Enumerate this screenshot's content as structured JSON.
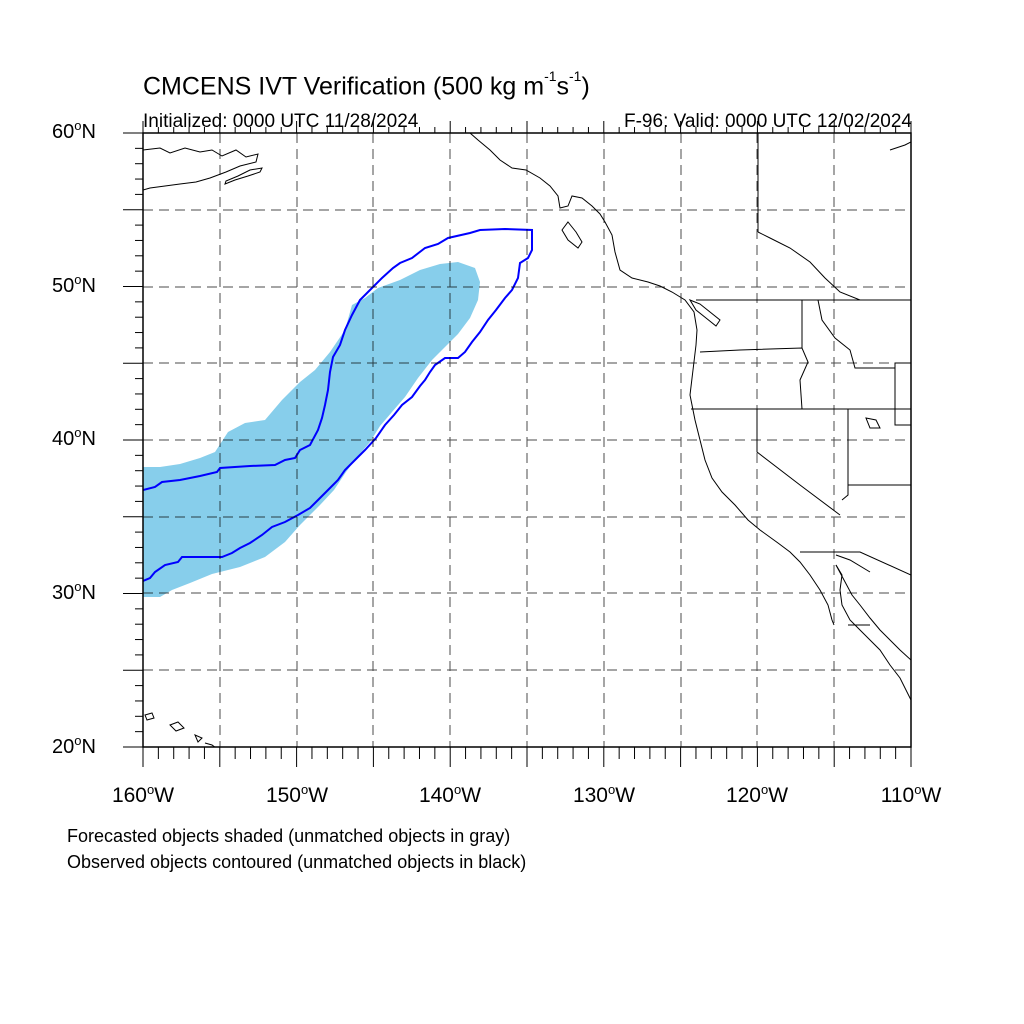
{
  "title": {
    "prefix": "CMCENS IVT Verification (500 kg m",
    "sup1": "-1",
    "mid": "s",
    "sup2": "-1",
    "suffix": ")"
  },
  "initialized": "Initialized: 0000 UTC 11/28/2024",
  "valid": "F-96: Valid: 0000 UTC 12/02/2024",
  "lat_labels": [
    {
      "num": "60",
      "unit": "N"
    },
    {
      "num": "50",
      "unit": "N"
    },
    {
      "num": "40",
      "unit": "N"
    },
    {
      "num": "30",
      "unit": "N"
    },
    {
      "num": "20",
      "unit": "N"
    }
  ],
  "lon_labels": [
    {
      "num": "160",
      "unit": "W"
    },
    {
      "num": "150",
      "unit": "W"
    },
    {
      "num": "140",
      "unit": "W"
    },
    {
      "num": "130",
      "unit": "W"
    },
    {
      "num": "120",
      "unit": "W"
    },
    {
      "num": "110",
      "unit": "W"
    }
  ],
  "degree_symbol": "o",
  "notes": {
    "forecast": "Forecasted objects shaded (unmatched objects in gray)",
    "observed": "Observed objects contoured (unmatched objects in black)"
  },
  "map_extent": {
    "lon": [
      -160,
      -110
    ],
    "lat": [
      20,
      60
    ]
  },
  "colors": {
    "forecast_fill": "#87ceeb",
    "observed_contour": "#0000ff",
    "coastline": "#000000",
    "grid": "#000000"
  }
}
